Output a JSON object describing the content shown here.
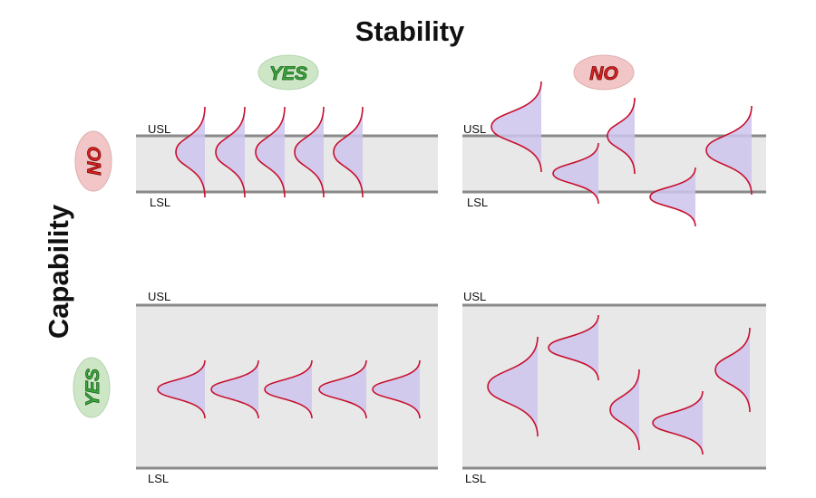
{
  "title": "Stability",
  "side_title": "Capability",
  "columns": [
    {
      "label": "YES"
    },
    {
      "label": "NO"
    }
  ],
  "rows": [
    {
      "label": "NO"
    },
    {
      "label": "YES"
    }
  ],
  "panels": [
    {
      "upper": "USL",
      "lower": "LSL"
    },
    {
      "upper": "USL",
      "lower": "LSL"
    },
    {
      "upper": "USL",
      "lower": "LSL"
    },
    {
      "upper": "USL",
      "lower": "LSL"
    }
  ]
}
